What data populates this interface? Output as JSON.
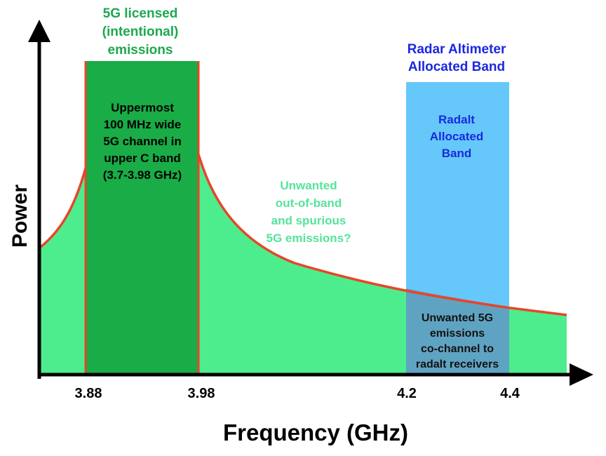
{
  "chart_data": {
    "type": "area",
    "xlabel": "Frequency (GHz)",
    "ylabel": "Power",
    "ticks": [
      "3.88",
      "3.98",
      "4.2",
      "4.4"
    ],
    "bands": {
      "licensed": {
        "title_lines": [
          "5G licensed",
          "(intentional)",
          "emissions"
        ],
        "text_lines": [
          "Uppermost",
          "100 MHz wide",
          "5G channel in",
          "upper C band",
          "(3.7-3.98 GHz)"
        ],
        "range_ghz": [
          3.88,
          3.98
        ],
        "color": "#1aac46"
      },
      "radalt": {
        "title_lines": [
          "Radar Altimeter",
          "Allocated Band"
        ],
        "text_lines": [
          "Radalt",
          "Allocated",
          "Band"
        ],
        "range_ghz": [
          4.2,
          4.4
        ],
        "color": "#66c8fa"
      }
    },
    "unwanted_label_lines": [
      "Unwanted",
      "out-of-band",
      "and spurious",
      "5G emissions?"
    ],
    "overlap_label_lines": [
      "Unwanted 5G",
      "emissions",
      "co-channel to",
      "radalt receivers"
    ],
    "colors": {
      "emission_fill": "#4ded8e",
      "emission_curve": "#e8452a",
      "overlap": "#5fa3c2",
      "radalt_text": "#1a28e0",
      "licensed_title": "#1ca84e",
      "unwanted_text": "#56e39a",
      "axis": "#000000"
    }
  }
}
